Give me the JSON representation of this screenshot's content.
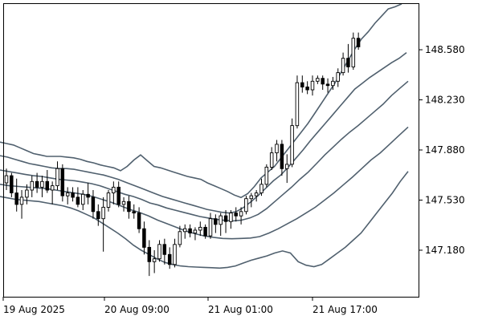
{
  "chart_data": {
    "type": "candlestick",
    "colors": {
      "background": "#ffffff",
      "frame": "#000000",
      "band_line": "#50606e",
      "bull_fill": "#ffffff",
      "bear_fill": "#000000",
      "candle_stroke": "#000000"
    },
    "y_axis": {
      "ylim": [
        146.855,
        148.905
      ],
      "ticks": [
        "148.580",
        "148.230",
        "147.880",
        "147.530",
        "147.180"
      ]
    },
    "x_axis": {
      "ticks": [
        "19 Aug 2025",
        "20 Aug 09:00",
        "21 Aug 01:00",
        "21 Aug 17:00"
      ]
    },
    "candles": [
      [
        147.65,
        147.75,
        147.6,
        147.7
      ],
      [
        147.7,
        147.72,
        147.55,
        147.58
      ],
      [
        147.58,
        147.68,
        147.45,
        147.5
      ],
      [
        147.5,
        147.6,
        147.4,
        147.55
      ],
      [
        147.55,
        147.64,
        147.5,
        147.6
      ],
      [
        147.6,
        147.7,
        147.55,
        147.66
      ],
      [
        147.66,
        147.72,
        147.58,
        147.62
      ],
      [
        147.62,
        147.7,
        147.55,
        147.66
      ],
      [
        147.66,
        147.74,
        147.58,
        147.6
      ],
      [
        147.6,
        147.66,
        147.5,
        147.63
      ],
      [
        147.63,
        147.8,
        147.6,
        147.75
      ],
      [
        147.75,
        147.78,
        147.52,
        147.56
      ],
      [
        147.56,
        147.62,
        147.5,
        147.58
      ],
      [
        147.58,
        147.62,
        147.52,
        147.55
      ],
      [
        147.55,
        147.62,
        147.48,
        147.5
      ],
      [
        147.5,
        147.6,
        147.46,
        147.57
      ],
      [
        147.57,
        147.65,
        147.5,
        147.55
      ],
      [
        147.55,
        147.6,
        147.4,
        147.45
      ],
      [
        147.45,
        147.5,
        147.35,
        147.4
      ],
      [
        147.4,
        147.55,
        147.17,
        147.48
      ],
      [
        147.48,
        147.6,
        147.45,
        147.58
      ],
      [
        147.58,
        147.66,
        147.5,
        147.62
      ],
      [
        147.62,
        147.66,
        147.48,
        147.5
      ],
      [
        147.5,
        147.55,
        147.45,
        147.52
      ],
      [
        147.52,
        147.56,
        147.4,
        147.45
      ],
      [
        147.45,
        147.5,
        147.4,
        147.44
      ],
      [
        147.44,
        147.48,
        147.3,
        147.33
      ],
      [
        147.33,
        147.38,
        147.15,
        147.2
      ],
      [
        147.2,
        147.25,
        147.0,
        147.1
      ],
      [
        147.1,
        147.18,
        147.02,
        147.12
      ],
      [
        147.12,
        147.25,
        147.1,
        147.22
      ],
      [
        147.22,
        147.26,
        147.08,
        147.15
      ],
      [
        147.15,
        147.2,
        147.05,
        147.08
      ],
      [
        147.08,
        147.26,
        147.06,
        147.22
      ],
      [
        147.22,
        147.35,
        147.2,
        147.31
      ],
      [
        147.31,
        147.36,
        147.26,
        147.33
      ],
      [
        147.33,
        147.36,
        147.27,
        147.3
      ],
      [
        147.3,
        147.34,
        147.25,
        147.32
      ],
      [
        147.32,
        147.38,
        147.28,
        147.34
      ],
      [
        147.34,
        147.36,
        147.26,
        147.28
      ],
      [
        147.28,
        147.44,
        147.26,
        147.4
      ],
      [
        147.4,
        147.43,
        147.3,
        147.36
      ],
      [
        147.36,
        147.44,
        147.28,
        147.42
      ],
      [
        147.42,
        147.46,
        147.3,
        147.38
      ],
      [
        147.38,
        147.46,
        147.33,
        147.44
      ],
      [
        147.44,
        147.48,
        147.38,
        147.42
      ],
      [
        147.42,
        147.48,
        147.36,
        147.45
      ],
      [
        147.45,
        147.56,
        147.43,
        147.54
      ],
      [
        147.54,
        147.58,
        147.48,
        147.56
      ],
      [
        147.56,
        147.6,
        147.52,
        147.58
      ],
      [
        147.58,
        147.68,
        147.56,
        147.64
      ],
      [
        147.64,
        147.78,
        147.62,
        147.76
      ],
      [
        147.76,
        147.9,
        147.74,
        147.86
      ],
      [
        147.86,
        147.95,
        147.8,
        147.92
      ],
      [
        147.92,
        147.95,
        147.7,
        147.75
      ],
      [
        147.75,
        147.85,
        147.65,
        147.78
      ],
      [
        147.78,
        148.1,
        147.76,
        148.05
      ],
      [
        148.05,
        148.4,
        148.03,
        148.35
      ],
      [
        148.35,
        148.4,
        148.28,
        148.32
      ],
      [
        148.32,
        148.36,
        148.27,
        148.3
      ],
      [
        148.3,
        148.4,
        148.26,
        148.36
      ],
      [
        148.36,
        148.4,
        148.34,
        148.38
      ],
      [
        148.38,
        148.4,
        148.3,
        148.34
      ],
      [
        148.34,
        148.38,
        148.28,
        148.33
      ],
      [
        148.33,
        148.39,
        148.3,
        148.36
      ],
      [
        148.36,
        148.45,
        148.32,
        148.42
      ],
      [
        148.42,
        148.56,
        148.4,
        148.52
      ],
      [
        148.52,
        148.62,
        148.42,
        148.46
      ],
      [
        148.46,
        148.7,
        148.44,
        148.66
      ],
      [
        148.66,
        148.7,
        148.58,
        148.6
      ]
    ],
    "bands": [
      [
        147.935,
        147.925,
        147.915,
        147.895,
        147.875,
        147.855,
        147.845,
        147.835,
        147.835,
        147.835,
        147.83,
        147.825,
        147.815,
        147.8,
        147.79,
        147.775,
        147.765,
        147.755,
        147.735,
        147.765,
        147.81,
        147.845,
        147.805,
        147.765,
        147.755,
        147.74,
        147.725,
        147.71,
        147.695,
        147.685,
        147.675,
        147.65,
        147.63,
        147.61,
        147.59,
        147.565,
        147.548,
        147.575,
        147.625,
        147.685,
        147.725,
        147.765,
        147.825,
        147.885,
        147.945,
        148.005,
        148.065,
        148.135,
        148.205,
        148.275,
        148.345,
        148.425,
        148.505,
        148.585,
        148.655,
        148.705,
        148.765,
        148.815,
        148.865,
        148.88,
        148.9
      ],
      [
        147.84,
        147.83,
        147.815,
        147.8,
        147.785,
        147.775,
        147.765,
        147.755,
        147.75,
        147.75,
        147.745,
        147.735,
        147.725,
        147.715,
        147.705,
        147.69,
        147.675,
        147.655,
        147.635,
        147.615,
        147.595,
        147.575,
        147.555,
        147.54,
        147.525,
        147.51,
        147.495,
        147.48,
        147.465,
        147.455,
        147.445,
        147.44,
        147.45,
        147.48,
        147.52,
        147.565,
        147.615,
        147.665,
        147.705,
        147.76,
        147.82,
        147.88,
        147.945,
        148.005,
        148.065,
        148.125,
        148.185,
        148.245,
        148.305,
        148.345,
        148.385,
        148.42,
        148.455,
        148.49,
        148.52,
        148.56
      ],
      [
        147.74,
        147.73,
        147.72,
        147.71,
        147.7,
        147.695,
        147.685,
        147.675,
        147.67,
        147.665,
        147.655,
        147.645,
        147.63,
        147.61,
        147.59,
        147.57,
        147.555,
        147.535,
        147.51,
        147.495,
        147.475,
        147.46,
        147.445,
        147.43,
        147.415,
        147.405,
        147.395,
        147.388,
        147.385,
        147.39,
        147.405,
        147.43,
        147.47,
        147.52,
        147.57,
        147.62,
        147.675,
        147.725,
        147.785,
        147.845,
        147.9,
        147.955,
        148.005,
        148.05,
        148.1,
        148.15,
        148.2,
        148.26,
        148.31,
        148.36
      ],
      [
        147.64,
        147.63,
        147.625,
        147.62,
        147.615,
        147.61,
        147.6,
        147.59,
        147.58,
        147.57,
        147.555,
        147.535,
        147.515,
        147.49,
        147.465,
        147.445,
        147.42,
        147.39,
        147.365,
        147.34,
        147.315,
        147.295,
        147.28,
        147.27,
        147.262,
        147.26,
        147.262,
        147.265,
        147.275,
        147.3,
        147.33,
        147.365,
        147.4,
        147.44,
        147.48,
        147.53,
        147.58,
        147.635,
        147.69,
        147.75,
        147.81,
        147.86,
        147.92,
        147.98,
        148.04
      ],
      [
        147.555,
        147.545,
        147.535,
        147.53,
        147.525,
        147.52,
        147.51,
        147.5,
        147.49,
        147.475,
        147.455,
        147.43,
        147.405,
        147.37,
        147.335,
        147.3,
        147.26,
        147.215,
        147.18,
        147.15,
        147.12,
        147.095,
        147.08,
        147.07,
        147.065,
        147.062,
        147.06,
        147.058,
        147.055,
        147.06,
        147.07,
        147.09,
        147.11,
        147.125,
        147.14,
        147.16,
        147.175,
        147.16,
        147.1,
        147.075,
        147.065,
        147.08,
        147.12,
        147.16,
        147.2,
        147.25,
        147.3,
        147.37,
        147.44,
        147.51,
        147.58,
        147.66,
        147.73
      ]
    ]
  }
}
